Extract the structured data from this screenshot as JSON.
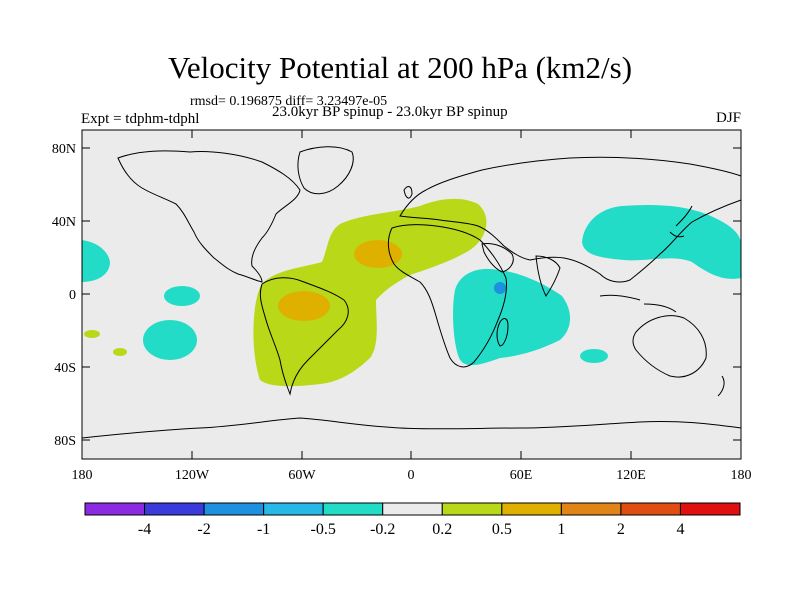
{
  "title": "Velocity Potential at 200 hPa (km2/s)",
  "stats": "rmsd= 0.196875 diff= 3.23497e-05",
  "experiment": "Expt = tdphm-tdphl",
  "subtitle": "23.0kyr BP spinup - 23.0kyr BP spinup",
  "season": "DJF",
  "map": {
    "lat_ticks": [
      "80N",
      "40N",
      "0",
      "40S",
      "80S"
    ],
    "lon_ticks": [
      "180",
      "120W",
      "60W",
      "0",
      "60E",
      "120E",
      "180"
    ],
    "background_color": "#ebebeb"
  },
  "colorbar": {
    "colors": [
      "#8a2be2",
      "#3b3bdc",
      "#1e90e0",
      "#28b8e6",
      "#22dcc8",
      "#ebebeb",
      "#b8d818",
      "#e0b000",
      "#e08418",
      "#e04d10",
      "#e01010"
    ],
    "labels": [
      "-4",
      "-2",
      "-1",
      "-0.5",
      "-0.2",
      "0.2",
      "0.5",
      "1",
      "2",
      "4"
    ]
  }
}
